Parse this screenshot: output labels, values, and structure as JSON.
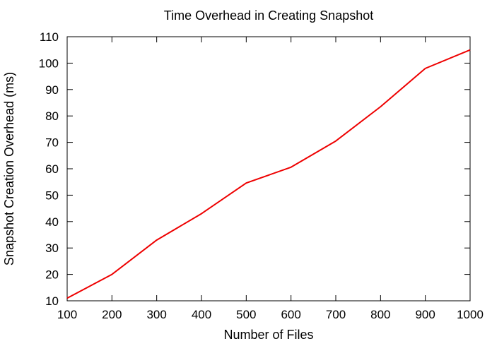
{
  "chart_data": {
    "type": "line",
    "title": "Time Overhead in Creating Snapshot",
    "xlabel": "Number of Files",
    "ylabel": "Snapshot Creation Overhead (ms)",
    "xlim": [
      100,
      1000
    ],
    "ylim": [
      10,
      110
    ],
    "xticks": [
      100,
      200,
      300,
      400,
      500,
      600,
      700,
      800,
      900,
      1000
    ],
    "yticks": [
      10,
      20,
      30,
      40,
      50,
      60,
      70,
      80,
      90,
      100,
      110
    ],
    "grid": false,
    "legend": false,
    "series": [
      {
        "color": "#ee0000",
        "x": [
          100,
          200,
          300,
          400,
          500,
          600,
          700,
          800,
          900,
          1000
        ],
        "values": [
          11,
          20,
          33,
          43,
          54.6,
          60.6,
          70.5,
          83.5,
          98,
          105
        ]
      }
    ]
  }
}
